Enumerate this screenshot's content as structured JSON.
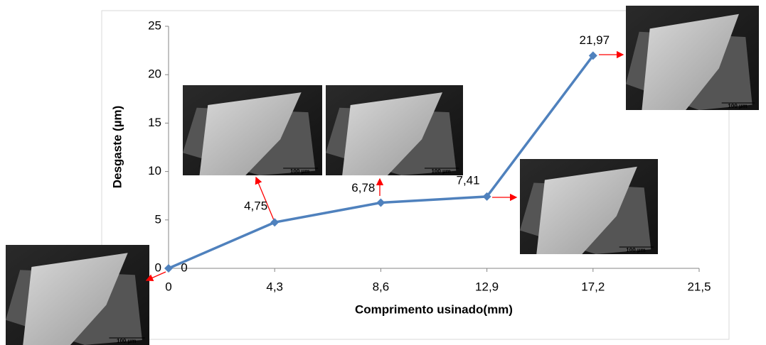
{
  "chart_data": {
    "type": "line",
    "x_label": "Comprimento usinado(mm)",
    "y_label": "Desgaste (µm)",
    "x": [
      0,
      4.3,
      8.6,
      12.9,
      17.2
    ],
    "series": [
      {
        "color": "#4f81bd",
        "values": [
          0,
          4.75,
          6.78,
          7.41,
          21.97
        ],
        "value_labels": [
          "0",
          "4,75",
          "6,78",
          "7,41",
          "21,97"
        ]
      }
    ],
    "xlim": [
      0,
      21.5
    ],
    "xticks": [
      0,
      {
        "value": 4.3,
        "label": "4,3"
      },
      {
        "value": 8.6,
        "label": "8,6"
      },
      {
        "value": 12.9,
        "label": "12,9"
      },
      {
        "value": 17.2,
        "label": "17,2"
      },
      {
        "value": 21.5,
        "label": "21,5"
      }
    ],
    "ylim": [
      0,
      25
    ],
    "yticks": [
      0,
      5,
      10,
      15,
      20,
      25
    ],
    "grid": false,
    "image_scale_labels": [
      "100 µm",
      "100 µm",
      "100 µm",
      "100 µm",
      "100 µm"
    ]
  }
}
